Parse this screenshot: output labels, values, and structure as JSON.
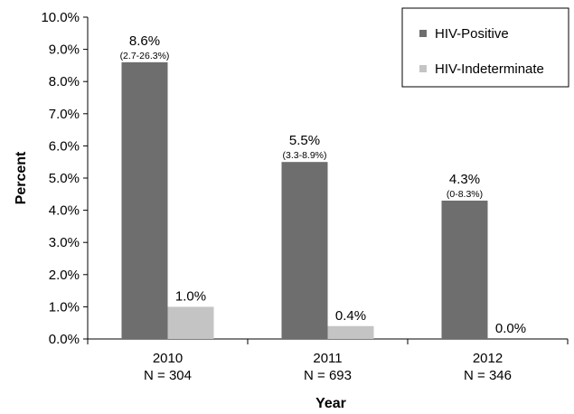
{
  "chart_data": {
    "type": "bar",
    "title": "",
    "xlabel": "Year",
    "ylabel": "Percent",
    "ylim": [
      0,
      10
    ],
    "y_tick_step": 1,
    "y_tick_labels": [
      "0.0%",
      "1.0%",
      "2.0%",
      "3.0%",
      "4.0%",
      "5.0%",
      "6.0%",
      "7.0%",
      "8.0%",
      "9.0%",
      "10.0%"
    ],
    "grid": false,
    "legend_position": "top-right",
    "categories": [
      {
        "year": "2010",
        "n": "N = 304"
      },
      {
        "year": "2011",
        "n": "N = 693"
      },
      {
        "year": "2012",
        "n": "N = 346"
      }
    ],
    "series": [
      {
        "name": "HIV-Positive",
        "color": "#6e6e6e",
        "values": [
          8.6,
          5.5,
          4.3
        ],
        "labels": [
          "8.6%",
          "5.5%",
          "4.3%"
        ],
        "ci_labels": [
          "(2.7-26.3%)",
          "(3.3-8.9%)",
          "(0-8.3%)"
        ]
      },
      {
        "name": "HIV-Indeterminate",
        "color": "#c4c4c4",
        "values": [
          1.0,
          0.4,
          0.0
        ],
        "labels": [
          "1.0%",
          "0.4%",
          "0.0%"
        ],
        "ci_labels": [
          "",
          "",
          ""
        ]
      }
    ]
  }
}
